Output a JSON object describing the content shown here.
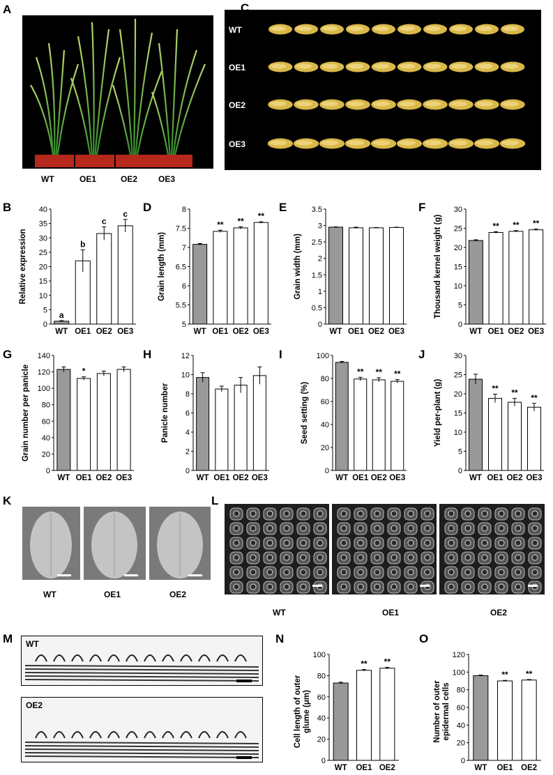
{
  "panel_letters": [
    "A",
    "B",
    "C",
    "D",
    "E",
    "F",
    "G",
    "H",
    "I",
    "J",
    "K",
    "L",
    "M",
    "N",
    "O"
  ],
  "photo_a": {
    "labels": [
      "WT",
      "OE1",
      "OE2",
      "OE3"
    ]
  },
  "photo_c": {
    "labels": [
      "WT",
      "OE1",
      "OE2",
      "OE3"
    ]
  },
  "photo_k": {
    "labels": [
      "WT",
      "OE1",
      "OE2"
    ]
  },
  "photo_l": {
    "labels": [
      "WT",
      "OE1",
      "OE2"
    ]
  },
  "photo_m": {
    "labels": [
      "WT",
      "OE2"
    ]
  },
  "colors": {
    "wt_bar": "#999999",
    "oe_bar": "#ffffff",
    "photo_bg": "#000000",
    "sem_gray": "#8c8c8c"
  },
  "chart_data": [
    {
      "id": "B",
      "type": "bar",
      "ylabel": "Relative expression",
      "categories": [
        "WT",
        "OE1",
        "OE2",
        "OE3"
      ],
      "values": [
        1,
        22,
        31.5,
        34.2
      ],
      "errors": [
        0.2,
        3.8,
        2.3,
        2.2
      ],
      "ylim": [
        0,
        40
      ],
      "yticks": [
        "0",
        "5",
        "10",
        "15",
        "20",
        "25",
        "30",
        "35",
        "40"
      ],
      "annotations": [
        "a",
        "b",
        "c",
        "c"
      ]
    },
    {
      "id": "D",
      "type": "bar",
      "ylabel": "Grain length (mm)",
      "categories": [
        "WT",
        "OE1",
        "OE2",
        "OE3"
      ],
      "values": [
        7.08,
        7.42,
        7.51,
        7.65
      ],
      "errors": [
        0.02,
        0.03,
        0.03,
        0.02
      ],
      "ylim": [
        5,
        8
      ],
      "yticks": [
        "5",
        "5.5",
        "6",
        "6.5",
        "7",
        "7.5",
        "8"
      ],
      "annotations": [
        "",
        "**",
        "**",
        "**"
      ]
    },
    {
      "id": "E",
      "type": "bar",
      "ylabel": "Grain width (mm)",
      "categories": [
        "WT",
        "OE1",
        "OE2",
        "OE3"
      ],
      "values": [
        2.95,
        2.93,
        2.93,
        2.94
      ],
      "errors": [
        0.01,
        0.02,
        0.01,
        0.01
      ],
      "ylim": [
        0,
        3.5
      ],
      "yticks": [
        "0",
        "0.5",
        "1",
        "1.5",
        "2",
        "2.5",
        "3",
        "3.5"
      ],
      "annotations": [
        "",
        "",
        "",
        ""
      ]
    },
    {
      "id": "F",
      "type": "bar",
      "ylabel": "Thousand kernel weight (g)",
      "categories": [
        "WT",
        "OE1",
        "OE2",
        "OE3"
      ],
      "values": [
        21.8,
        23.9,
        24.2,
        24.6
      ],
      "errors": [
        0.2,
        0.2,
        0.2,
        0.2
      ],
      "ylim": [
        0,
        30
      ],
      "yticks": [
        "0",
        "5",
        "10",
        "15",
        "20",
        "25",
        "30"
      ],
      "annotations": [
        "",
        "**",
        "**",
        "**"
      ]
    },
    {
      "id": "G",
      "type": "bar",
      "ylabel": "Grain number per panicle",
      "categories": [
        "WT",
        "OE1",
        "OE2",
        "OE3"
      ],
      "values": [
        123,
        112,
        118,
        123
      ],
      "errors": [
        3,
        2,
        3,
        3
      ],
      "ylim": [
        0,
        140
      ],
      "yticks": [
        "0",
        "20",
        "40",
        "60",
        "80",
        "100",
        "120",
        "140"
      ],
      "annotations": [
        "",
        "*",
        "",
        ""
      ]
    },
    {
      "id": "H",
      "type": "bar",
      "ylabel": "Panicle number",
      "categories": [
        "WT",
        "OE1",
        "OE2",
        "OE3"
      ],
      "values": [
        9.7,
        8.5,
        8.9,
        9.9
      ],
      "errors": [
        0.5,
        0.3,
        0.8,
        0.9
      ],
      "ylim": [
        0,
        12
      ],
      "yticks": [
        "0",
        "2",
        "4",
        "6",
        "8",
        "10",
        "12"
      ],
      "annotations": [
        "",
        "",
        "",
        ""
      ]
    },
    {
      "id": "I",
      "type": "bar",
      "ylabel": "Seed setting (%)",
      "categories": [
        "WT",
        "OE1",
        "OE2",
        "OE3"
      ],
      "values": [
        94,
        79.5,
        78.8,
        77.5
      ],
      "errors": [
        0.8,
        1.5,
        1.8,
        1.5
      ],
      "ylim": [
        0,
        100
      ],
      "yticks": [
        "0",
        "20",
        "40",
        "60",
        "80",
        "100"
      ],
      "annotations": [
        "",
        "**",
        "**",
        "**"
      ]
    },
    {
      "id": "J",
      "type": "bar",
      "ylabel": "Yield per-plant (g)",
      "categories": [
        "WT",
        "OE1",
        "OE2",
        "OE3"
      ],
      "values": [
        23.8,
        18.8,
        17.8,
        16.5
      ],
      "errors": [
        1.3,
        1.1,
        1.0,
        1.0
      ],
      "ylim": [
        0,
        30
      ],
      "yticks": [
        "0",
        "5",
        "10",
        "15",
        "20",
        "25",
        "30"
      ],
      "annotations": [
        "",
        "**",
        "**",
        "**"
      ]
    },
    {
      "id": "N",
      "type": "bar",
      "ylabel": "Cell length of outer glume (μm)",
      "categories": [
        "WT",
        "OE1",
        "OE2"
      ],
      "values": [
        73,
        85,
        87
      ],
      "errors": [
        0.8,
        0.8,
        0.8
      ],
      "ylim": [
        0,
        100
      ],
      "yticks": [
        "0",
        "20",
        "40",
        "60",
        "80",
        "100"
      ],
      "annotations": [
        "",
        "**",
        "**"
      ]
    },
    {
      "id": "O",
      "type": "bar",
      "ylabel": "Number of outer epidermal cells",
      "categories": [
        "WT",
        "OE1",
        "OE2"
      ],
      "values": [
        96,
        90,
        91
      ],
      "errors": [
        0.6,
        0.6,
        0.6
      ],
      "ylim": [
        0,
        120
      ],
      "yticks": [
        "0",
        "20",
        "40",
        "60",
        "80",
        "100",
        "120"
      ],
      "annotations": [
        "",
        "**",
        "**"
      ]
    }
  ]
}
